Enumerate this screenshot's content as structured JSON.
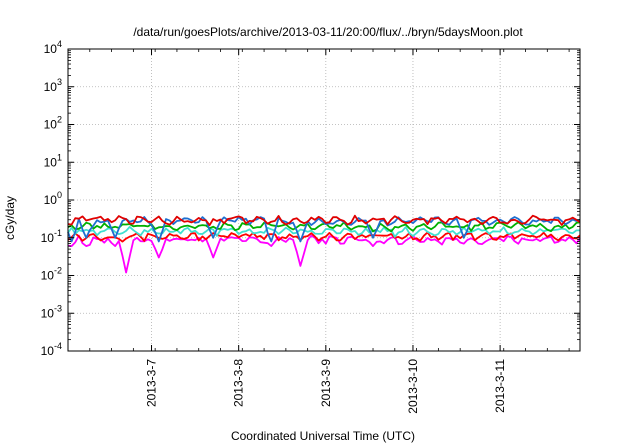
{
  "chart_data": {
    "type": "line",
    "title": "/data/run/goesPlots/archive/2013-03-11/20:00/flux/../bryn/5daysMoon.plot",
    "xlabel": "Coordinated Universal Time (UTC)",
    "ylabel": "cGy/day",
    "yscale": "log",
    "ylim": [
      0.0001,
      10000
    ],
    "y_ticks": [
      {
        "base": "10",
        "exp": "-4",
        "value": 0.0001
      },
      {
        "base": "10",
        "exp": "-3",
        "value": 0.001
      },
      {
        "base": "10",
        "exp": "-2",
        "value": 0.01
      },
      {
        "base": "10",
        "exp": "-1",
        "value": 0.1
      },
      {
        "base": "10",
        "exp": "0",
        "value": 1
      },
      {
        "base": "10",
        "exp": "1",
        "value": 10
      },
      {
        "base": "10",
        "exp": "2",
        "value": 100
      },
      {
        "base": "10",
        "exp": "3",
        "value": 1000
      },
      {
        "base": "10",
        "exp": "4",
        "value": 10000
      }
    ],
    "xlim": [
      "2013-03-06T01:00",
      "2013-03-11T22:00"
    ],
    "x_ticks": [
      {
        "label": "2013-3-7",
        "value": "2013-03-07"
      },
      {
        "label": "2013-3-8",
        "value": "2013-03-08"
      },
      {
        "label": "2013-3-9",
        "value": "2013-03-09"
      },
      {
        "label": "2013-3-10",
        "value": "2013-03-10"
      },
      {
        "label": "2013-3-11",
        "value": "2013-03-11"
      }
    ],
    "grid": true,
    "series": [
      {
        "color": "#ff00ff",
        "base_level": 0.09,
        "dips": [
          {
            "x": "2013-03-06T02:00",
            "y": 0.06
          },
          {
            "x": "2013-03-06T06:00",
            "y": 0.06
          },
          {
            "x": "2013-03-06T14:00",
            "y": 0.06
          },
          {
            "x": "2013-03-06T17:00",
            "y": 0.012
          },
          {
            "x": "2013-03-07T02:00",
            "y": 0.03
          },
          {
            "x": "2013-03-07T17:00",
            "y": 0.03
          },
          {
            "x": "2013-03-08T09:00",
            "y": 0.06
          },
          {
            "x": "2013-03-08T17:00",
            "y": 0.018
          },
          {
            "x": "2013-03-09T13:00",
            "y": 0.06
          },
          {
            "x": "2013-03-10T14:00",
            "y": 0.07
          }
        ]
      },
      {
        "color": "#ff0000",
        "base_level": 0.11,
        "dips": []
      },
      {
        "color": "#40e0d0",
        "base_level": 0.15,
        "dips": []
      },
      {
        "color": "#00b000",
        "base_level": 0.2,
        "dips": []
      },
      {
        "color": "#1f6fd0",
        "base_level": 0.28,
        "dips": [
          {
            "x": "2013-03-06T02:00",
            "y": 0.08
          },
          {
            "x": "2013-03-06T06:00",
            "y": 0.1
          },
          {
            "x": "2013-03-06T14:00",
            "y": 0.1
          },
          {
            "x": "2013-03-07T02:00",
            "y": 0.08
          },
          {
            "x": "2013-03-07T17:00",
            "y": 0.1
          },
          {
            "x": "2013-03-08T09:00",
            "y": 0.08
          },
          {
            "x": "2013-03-08T17:00",
            "y": 0.08
          },
          {
            "x": "2013-03-09T13:00",
            "y": 0.1
          },
          {
            "x": "2013-03-10T14:00",
            "y": 0.1
          }
        ]
      },
      {
        "color": "#e00000",
        "base_level": 0.3,
        "dips": []
      }
    ]
  }
}
